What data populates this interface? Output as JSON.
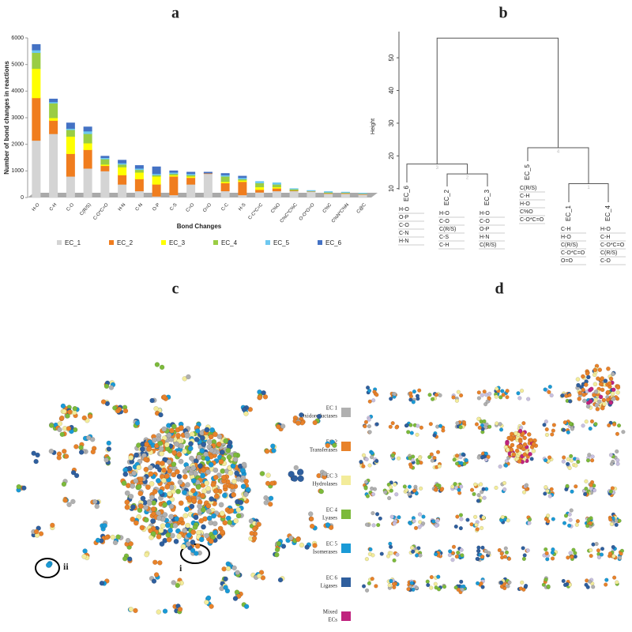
{
  "panel_labels": [
    "a",
    "b",
    "c",
    "d"
  ],
  "chart_data": [
    {
      "type": "bar",
      "stacked": true,
      "xlabel": "Bond Changes",
      "ylabel": "Number of bond changes in reactions",
      "categories": [
        "H-O",
        "C-H",
        "C-O",
        "C(R/S)",
        "C-O*C=O",
        "H-N",
        "C-N",
        "O-P",
        "C-S",
        "C=O",
        "O=O",
        "C-C",
        "H-S",
        "C-C*C=C",
        "C%O",
        "C%C*C%C",
        "O-O*O=O",
        "C%C",
        "C%N*C%N",
        "C@C"
      ],
      "series": [
        {
          "name": "EC_1",
          "color": "#d4d4d4",
          "values": [
            2150,
            2400,
            800,
            1100,
            1000,
            500,
            250,
            50,
            100,
            500,
            900,
            250,
            100,
            200,
            250,
            250,
            230,
            150,
            150,
            120
          ]
        },
        {
          "name": "EC_2",
          "color": "#f07d1e",
          "values": [
            1600,
            500,
            850,
            700,
            200,
            350,
            450,
            450,
            700,
            250,
            20,
            300,
            500,
            100,
            100,
            20,
            10,
            20,
            20,
            20
          ]
        },
        {
          "name": "EC_3",
          "color": "#ffff00",
          "values": [
            1100,
            100,
            650,
            250,
            50,
            300,
            250,
            300,
            50,
            50,
            0,
            50,
            50,
            100,
            50,
            0,
            0,
            0,
            0,
            0
          ]
        },
        {
          "name": "EC_4",
          "color": "#9acd44",
          "values": [
            600,
            550,
            250,
            350,
            200,
            100,
            100,
            50,
            50,
            50,
            0,
            200,
            50,
            150,
            100,
            50,
            10,
            30,
            20,
            10
          ]
        },
        {
          "name": "EC_5",
          "color": "#6ec8f0",
          "values": [
            100,
            50,
            50,
            100,
            50,
            50,
            50,
            50,
            50,
            50,
            0,
            50,
            50,
            50,
            50,
            10,
            10,
            20,
            10,
            10
          ]
        },
        {
          "name": "EC_6",
          "color": "#4472c4",
          "values": [
            200,
            100,
            200,
            150,
            50,
            100,
            100,
            250,
            50,
            50,
            30,
            50,
            50,
            0,
            0,
            0,
            0,
            0,
            0,
            0
          ]
        }
      ],
      "ylim": [
        0,
        6000
      ],
      "yticks": [
        0,
        1000,
        2000,
        3000,
        4000,
        5000,
        6000
      ],
      "legend": "bottom"
    },
    {
      "type": "dendrogram",
      "ylabel": "Height",
      "ylim": [
        8,
        58
      ],
      "yticks": [
        10,
        20,
        30,
        40,
        50
      ],
      "leaves": [
        {
          "label": "EC_6",
          "bonds": [
            "H-O",
            "O-P",
            "C-O",
            "C-N",
            "H-N"
          ]
        },
        {
          "label": "EC_2",
          "bonds": [
            "H-O",
            "C-O",
            "C(R/S)",
            "C-S",
            "C-H"
          ]
        },
        {
          "label": "EC_3",
          "bonds": [
            "H-O",
            "C-O",
            "O-P",
            "H-N",
            "C(R/S)"
          ]
        },
        {
          "label": "EC_5",
          "bonds": [
            "C(R/S)",
            "C-H",
            "H-O",
            "C%O",
            "C-O*C=O"
          ]
        },
        {
          "label": "EC_1",
          "bonds": [
            "C-H",
            "H-O",
            "C(R/S)",
            "C-O*C=O",
            "O=O"
          ]
        },
        {
          "label": "EC_4",
          "bonds": [
            "H-O",
            "C-H",
            "C-O*C=O",
            "C(R/S)",
            "C-O"
          ]
        }
      ],
      "merges": [
        {
          "height": 14.5,
          "label": "2"
        },
        {
          "height": 17.5,
          "label": "3"
        },
        {
          "height": 11.5,
          "label": "1"
        },
        {
          "height": 22.5,
          "label": "4"
        },
        {
          "height": 56
        }
      ]
    }
  ],
  "network_legend": [
    {
      "label": "EC 1",
      "name": "Oxidoreductases",
      "color": "#b0b0b0"
    },
    {
      "label": "EC 2",
      "name": "Transferases",
      "color": "#e8822a"
    },
    {
      "label": "EC 3",
      "name": "Hydrolases",
      "color": "#f3ec9a"
    },
    {
      "label": "EC 4",
      "name": "Lyases",
      "color": "#7cba3b"
    },
    {
      "label": "EC 5",
      "name": "Isomerases",
      "color": "#1a9ad6"
    },
    {
      "label": "EC 6",
      "name": "Ligases",
      "color": "#2f5f9e"
    },
    {
      "label": "Mixed",
      "name": "ECs",
      "color": "#c0237e"
    }
  ],
  "annotations": [
    "i",
    "ii"
  ]
}
